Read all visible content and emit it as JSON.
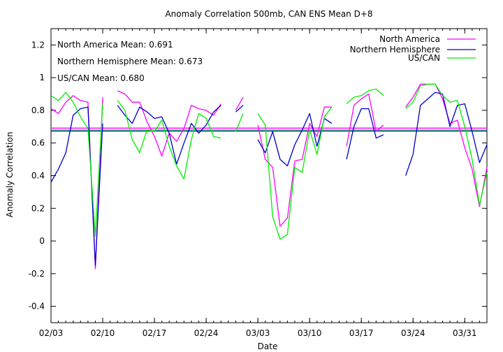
{
  "chart_data": {
    "type": "line",
    "title": "Anomaly Correlation 500mb, CAN ENS Mean D+8",
    "xlabel": "Date",
    "ylabel": "Anomaly Correlation",
    "x_range": [
      "02/03",
      "04/03"
    ],
    "ylim": [
      -0.5,
      1.3
    ],
    "xticks": [
      "02/03",
      "02/10",
      "02/17",
      "02/24",
      "03/03",
      "03/10",
      "03/17",
      "03/24",
      "03/31"
    ],
    "yticks": [
      -0.4,
      -0.2,
      0,
      0.2,
      0.4,
      0.6,
      0.8,
      1,
      1.2
    ],
    "legend_position": "top-right",
    "grid": false,
    "mean_labels": [
      "North America Mean: 0.691",
      "Northern Hemisphere Mean: 0.673",
      "US/CAN Mean: 0.680"
    ],
    "x_dates": [
      "02/03",
      "02/04",
      "02/05",
      "02/06",
      "02/07",
      "02/08",
      "02/09",
      "02/10",
      "02/11",
      "02/12",
      "02/13",
      "02/14",
      "02/15",
      "02/16",
      "02/17",
      "02/18",
      "02/19",
      "02/20",
      "02/21",
      "02/22",
      "02/23",
      "02/24",
      "02/25",
      "02/26",
      "02/27",
      "02/28",
      "03/01",
      "03/02",
      "03/03",
      "03/04",
      "03/05",
      "03/06",
      "03/07",
      "03/08",
      "03/09",
      "03/10",
      "03/11",
      "03/12",
      "03/13",
      "03/14",
      "03/15",
      "03/16",
      "03/17",
      "03/18",
      "03/19",
      "03/20",
      "03/21",
      "03/22",
      "03/23",
      "03/24",
      "03/25",
      "03/26",
      "03/27",
      "03/28",
      "03/29",
      "03/30",
      "03/31",
      "04/01",
      "04/02",
      "04/03"
    ],
    "series": [
      {
        "name": "North America",
        "color": "#ff00ff",
        "mean": 0.691,
        "values": [
          0.81,
          0.78,
          0.85,
          0.89,
          0.86,
          0.85,
          -0.17,
          0.88,
          null,
          0.92,
          0.9,
          0.85,
          0.85,
          0.73,
          0.64,
          0.52,
          0.66,
          0.61,
          0.69,
          0.83,
          0.81,
          0.8,
          0.77,
          0.84,
          null,
          0.8,
          0.88,
          null,
          0.71,
          0.5,
          0.45,
          0.09,
          0.14,
          0.49,
          0.5,
          0.72,
          0.64,
          0.82,
          0.82,
          null,
          0.58,
          0.83,
          0.87,
          0.9,
          0.67,
          0.71,
          null,
          null,
          0.82,
          0.88,
          0.96,
          0.96,
          0.96,
          0.87,
          0.72,
          0.74,
          0.57,
          0.44,
          0.21,
          0.45
        ]
      },
      {
        "name": "Northern Hemisphere",
        "color": "#0000cc",
        "mean": 0.673,
        "values": [
          0.36,
          0.44,
          0.54,
          0.77,
          0.81,
          0.82,
          -0.15,
          0.72,
          null,
          0.83,
          0.77,
          0.72,
          0.82,
          0.79,
          0.75,
          0.76,
          0.66,
          0.47,
          0.6,
          0.72,
          0.66,
          0.71,
          0.79,
          0.83,
          null,
          0.79,
          0.83,
          null,
          0.62,
          0.54,
          0.67,
          0.5,
          0.46,
          0.59,
          0.68,
          0.78,
          0.58,
          0.75,
          0.72,
          null,
          0.5,
          0.7,
          0.81,
          0.81,
          0.63,
          0.65,
          null,
          null,
          0.4,
          0.53,
          0.83,
          0.87,
          0.91,
          0.9,
          0.7,
          0.83,
          0.84,
          0.67,
          0.48,
          0.59
        ]
      },
      {
        "name": "US/CAN",
        "color": "#00ee00",
        "mean": 0.68,
        "values": [
          0.89,
          0.86,
          0.91,
          0.85,
          0.76,
          0.69,
          0.03,
          0.84,
          null,
          0.86,
          0.8,
          0.62,
          0.54,
          0.68,
          0.67,
          0.74,
          0.58,
          0.46,
          0.38,
          0.62,
          0.78,
          0.75,
          0.64,
          0.63,
          null,
          0.67,
          0.78,
          null,
          0.78,
          0.71,
          0.15,
          0.01,
          0.04,
          0.45,
          0.42,
          0.68,
          0.53,
          0.76,
          0.82,
          null,
          0.84,
          0.88,
          0.89,
          0.92,
          0.93,
          0.89,
          null,
          null,
          0.81,
          0.85,
          0.95,
          0.96,
          0.96,
          0.89,
          0.85,
          0.86,
          0.7,
          0.5,
          0.22,
          0.42
        ]
      }
    ]
  }
}
